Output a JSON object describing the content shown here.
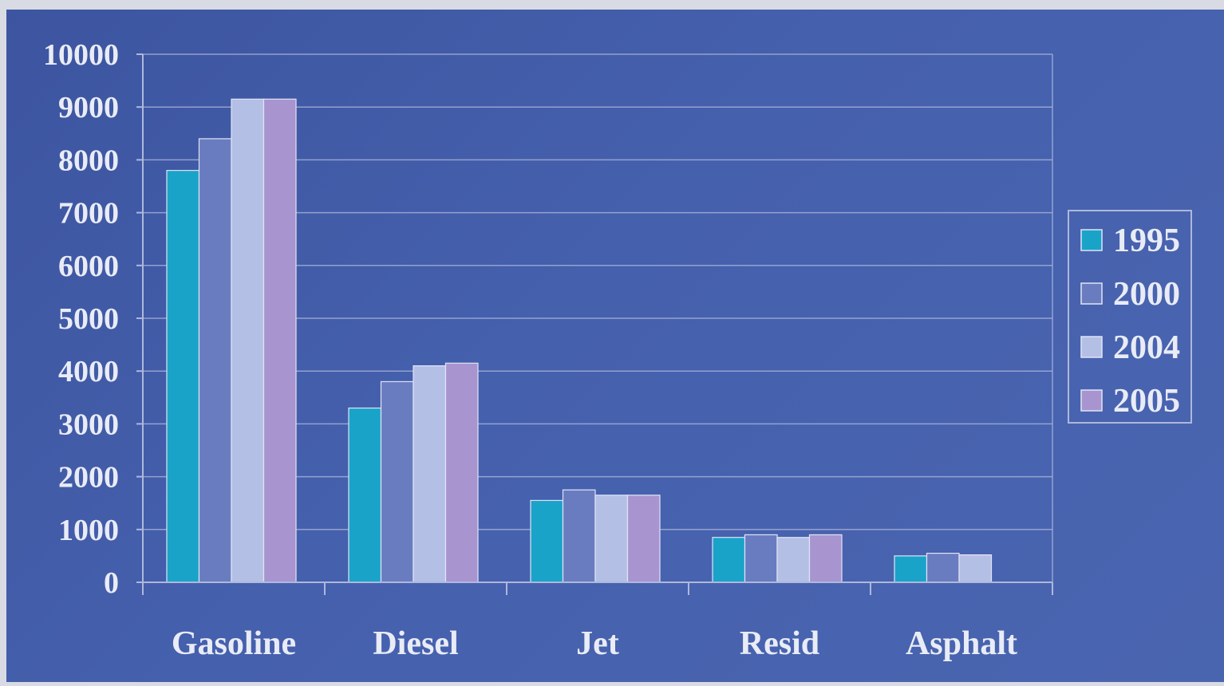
{
  "chart_data": {
    "type": "bar",
    "title": "",
    "xlabel": "",
    "ylabel": "",
    "ylim": [
      0,
      10000
    ],
    "yticks": [
      0,
      1000,
      2000,
      3000,
      4000,
      5000,
      6000,
      7000,
      8000,
      9000,
      10000
    ],
    "grid": true,
    "legend_position": "right",
    "categories": [
      "Gasoline",
      "Diesel",
      "Jet",
      "Resid",
      "Asphalt"
    ],
    "series": [
      {
        "name": "1995",
        "color": "#1aa3c9",
        "values": [
          7800,
          3300,
          1550,
          850,
          500
        ]
      },
      {
        "name": "2000",
        "color": "#6a7cc0",
        "values": [
          8400,
          3800,
          1750,
          900,
          550
        ]
      },
      {
        "name": "2004",
        "color": "#b4bfe6",
        "values": [
          9150,
          4100,
          1650,
          850,
          520
        ]
      },
      {
        "name": "2005",
        "color": "#a894cf",
        "values": [
          9150,
          4150,
          1650,
          900,
          null
        ]
      }
    ]
  },
  "colors": {
    "background": "#4560ad",
    "gridline": "#aeb8dc",
    "text": "#e9ecf6"
  }
}
